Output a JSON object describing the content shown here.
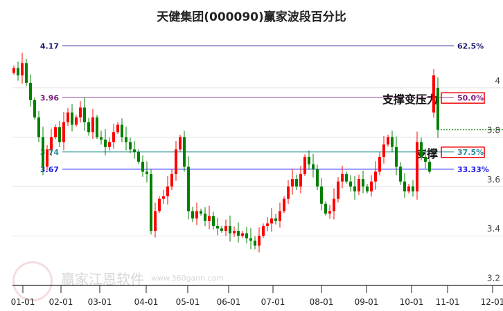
{
  "chart_data": {
    "type": "candlestick",
    "title": "天健集团(000090)赢家波段百分比",
    "ylim": [
      3.2,
      4.2
    ],
    "yticks": [
      "4",
      "3.8",
      "3.6",
      "3.4",
      "3.2"
    ],
    "ytick_values": [
      4,
      3.8,
      3.6,
      3.4,
      3.2
    ],
    "xticks": [
      "01-01",
      "02-01",
      "03-01",
      "04-01",
      "05-01",
      "06-01",
      "07-01",
      "08-01",
      "09-01",
      "10-01",
      "11-01",
      "12-01"
    ],
    "closes": [
      4.08,
      4.05,
      4.1,
      4.02,
      3.95,
      3.88,
      3.8,
      3.68,
      3.75,
      3.8,
      3.84,
      3.78,
      3.86,
      3.9,
      3.85,
      3.88,
      3.92,
      3.86,
      3.82,
      3.88,
      3.8,
      3.79,
      3.76,
      3.78,
      3.82,
      3.85,
      3.8,
      3.78,
      3.75,
      3.74,
      3.7,
      3.66,
      3.65,
      3.42,
      3.5,
      3.55,
      3.56,
      3.6,
      3.65,
      3.75,
      3.8,
      3.68,
      3.5,
      3.47,
      3.5,
      3.49,
      3.46,
      3.48,
      3.44,
      3.43,
      3.42,
      3.44,
      3.41,
      3.42,
      3.4,
      3.41,
      3.39,
      3.38,
      3.36,
      3.4,
      3.44,
      3.45,
      3.47,
      3.46,
      3.5,
      3.55,
      3.6,
      3.63,
      3.6,
      3.65,
      3.72,
      3.69,
      3.67,
      3.6,
      3.53,
      3.49,
      3.5,
      3.55,
      3.62,
      3.65,
      3.62,
      3.6,
      3.58,
      3.63,
      3.6,
      3.58,
      3.62,
      3.66,
      3.72,
      3.77,
      3.8,
      3.76,
      3.68,
      3.62,
      3.58,
      3.6,
      3.58,
      3.78,
      3.72,
      3.7,
      3.66,
      4.05,
      3.83
    ],
    "last_close": 3.83,
    "levels": [
      {
        "price": "4.17",
        "value": 4.17,
        "pct": "62.5%",
        "line": "#333399",
        "text": "#1a1a6e"
      },
      {
        "price": "3.96",
        "value": 3.96,
        "pct": "50.0%",
        "line": "#b56fb5",
        "text": "#7a1a7a",
        "note": "支撑变压力",
        "boxed": true
      },
      {
        "price": "3.74",
        "value": 3.74,
        "pct": "37.5%",
        "line": "#3a9a9a",
        "text": "#2a8a9a",
        "note": "支撑",
        "boxed": true
      },
      {
        "price": "3.67",
        "value": 3.67,
        "pct": "33.33%",
        "line": "#3333ff",
        "text": "#1a1aee"
      }
    ],
    "up_color": "#ff0000",
    "down_color": "#008000"
  },
  "watermark": {
    "logo": "江赢恩家",
    "name": "赢家江恩软件",
    "url": "www.360gann.com"
  }
}
